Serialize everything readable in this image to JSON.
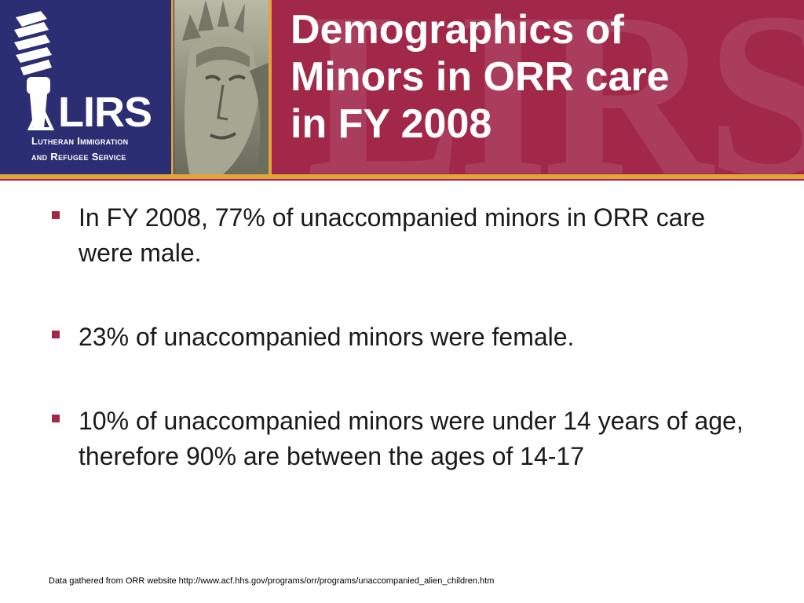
{
  "header": {
    "title_lines": [
      "Demographics of",
      "Minors in ORR care",
      "in FY 2008"
    ],
    "watermark": "LIRS",
    "logo": {
      "wordmark": "LIRS",
      "subtitle_lines": [
        "Lutheran Immigration",
        "and Refugee Service"
      ],
      "icon": "torch-icon"
    },
    "colors": {
      "header_bg": "#a2284a",
      "logo_bg": "#2c2e73",
      "accent_gold": "#e2a63b"
    }
  },
  "bullets": [
    {
      "text": "In FY 2008, 77% of unaccompanied minors in ORR care were male."
    },
    {
      "text": "23% of unaccompanied minors were female."
    },
    {
      "text": "10% of unaccompanied minors were under 14 years of age, therefore 90% are between the ages of 14-17"
    }
  ],
  "footnote": "Data gathered from ORR website http://www.acf.hhs.gov/programs/orr/programs/unaccompanied_alien_children.htm"
}
